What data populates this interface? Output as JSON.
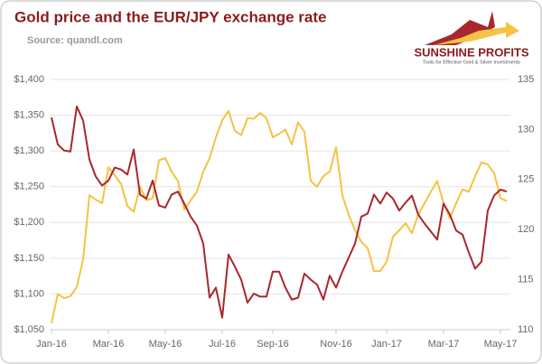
{
  "chart_data": {
    "type": "line",
    "title": "Gold price and the EUR/JPY exchange rate",
    "subtitle": "Source: quandl.com",
    "logo": {
      "name": "SUNSHINE PROFITS",
      "tagline": "Tools for Effective Gold & Silver Investments"
    },
    "categories": [
      "Jan-16",
      null,
      null,
      null,
      null,
      null,
      null,
      null,
      null,
      "Mar-16",
      null,
      null,
      null,
      null,
      null,
      null,
      null,
      null,
      "May-16",
      null,
      null,
      null,
      null,
      null,
      null,
      null,
      null,
      "Jul-16",
      null,
      null,
      null,
      null,
      null,
      null,
      null,
      "Sep-16",
      null,
      null,
      null,
      null,
      null,
      null,
      null,
      null,
      null,
      "Nov-16",
      null,
      null,
      null,
      null,
      null,
      null,
      null,
      "Jan-17",
      null,
      null,
      null,
      null,
      null,
      null,
      null,
      null,
      "Mar-17",
      null,
      null,
      null,
      null,
      null,
      null,
      null,
      null,
      "May-17",
      null
    ],
    "series": [
      {
        "name": "Gold price",
        "color": "#f5c342",
        "axis": "y",
        "values": [
          1059,
          1100,
          1094,
          1097,
          1110,
          1148,
          1238,
          1232,
          1227,
          1277,
          1266,
          1254,
          1223,
          1215,
          1250,
          1231,
          1234,
          1287,
          1290,
          1271,
          1258,
          1218,
          1231,
          1243,
          1271,
          1290,
          1319,
          1343,
          1356,
          1328,
          1322,
          1346,
          1345,
          1353,
          1346,
          1319,
          1324,
          1330,
          1309,
          1340,
          1327,
          1258,
          1250,
          1265,
          1271,
          1305,
          1238,
          1211,
          1189,
          1173,
          1164,
          1132,
          1132,
          1145,
          1180,
          1189,
          1199,
          1185,
          1211,
          1227,
          1243,
          1258,
          1227,
          1206,
          1227,
          1246,
          1243,
          1265,
          1284,
          1281,
          1269,
          1234,
          1230
        ]
      },
      {
        "name": "EUR/JPY",
        "color": "#a8282d",
        "axis": "y2",
        "values": [
          131.2,
          128.5,
          127.9,
          127.8,
          132.3,
          130.9,
          127.0,
          125.3,
          124.4,
          124.9,
          126.2,
          126.0,
          125.5,
          128.0,
          123.5,
          123.1,
          124.9,
          122.4,
          122.2,
          123.5,
          123.8,
          122.6,
          121.3,
          120.4,
          118.6,
          113.2,
          114.2,
          111.2,
          117.5,
          116.3,
          115.0,
          112.7,
          113.6,
          113.3,
          113.3,
          115.8,
          115.8,
          114.2,
          113.0,
          113.2,
          115.6,
          115.0,
          114.5,
          113.0,
          115.4,
          114.2,
          115.8,
          117.2,
          118.6,
          121.3,
          121.6,
          123.5,
          122.6,
          123.7,
          123.1,
          121.9,
          122.7,
          123.4,
          121.5,
          120.6,
          119.8,
          119.0,
          122.6,
          121.5,
          119.9,
          119.5,
          117.7,
          116.1,
          116.8,
          121.9,
          123.4,
          124.0,
          123.8
        ]
      }
    ],
    "ylim": [
      1050,
      1400
    ],
    "yticks": [
      {
        "value": 1050,
        "label": "$1,050"
      },
      {
        "value": 1100,
        "label": "$1,100"
      },
      {
        "value": 1150,
        "label": "$1,150"
      },
      {
        "value": 1200,
        "label": "$1,200"
      },
      {
        "value": 1250,
        "label": "$1,250"
      },
      {
        "value": 1300,
        "label": "$1,300"
      },
      {
        "value": 1350,
        "label": "$1,350"
      },
      {
        "value": 1400,
        "label": "$1,400"
      }
    ],
    "y2lim": [
      110,
      135
    ],
    "y2ticks": [
      110,
      115,
      120,
      125,
      130,
      135
    ],
    "grid": true
  }
}
